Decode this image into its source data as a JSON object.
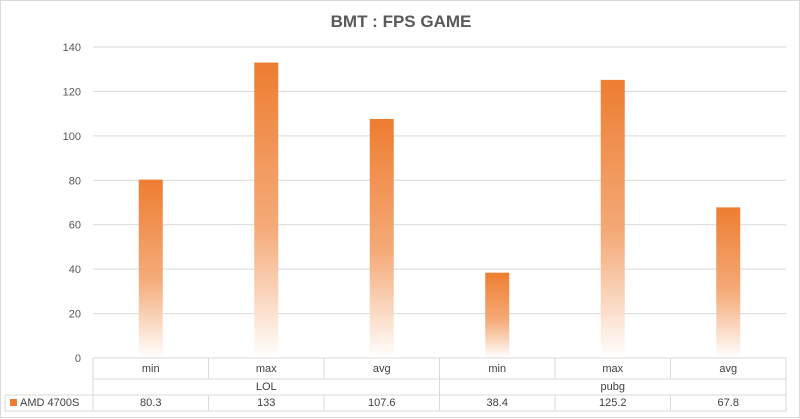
{
  "chart_data": {
    "type": "bar",
    "title": "BMT : FPS GAME",
    "groups": [
      {
        "label": "LOL",
        "categories": [
          "min",
          "max",
          "avg"
        ]
      },
      {
        "label": "pubg",
        "categories": [
          "min",
          "max",
          "avg"
        ]
      }
    ],
    "categories": [
      "min",
      "max",
      "avg",
      "min",
      "max",
      "avg"
    ],
    "series": [
      {
        "name": "AMD 4700S",
        "values": [
          80.3,
          133,
          107.6,
          38.4,
          125.2,
          67.8
        ],
        "color": "#ed7d31"
      }
    ],
    "data_table_values": [
      "80.3",
      "133",
      "107.6",
      "38.4",
      "125.2",
      "67.8"
    ],
    "ylim": [
      0,
      140
    ],
    "yticks": [
      0,
      20,
      40,
      60,
      80,
      100,
      120,
      140
    ],
    "grid": true,
    "legend_placement": "data-table-left",
    "colors": {
      "bar": "#ed7d31",
      "grid": "#d9d9d9",
      "text": "#595959"
    }
  }
}
